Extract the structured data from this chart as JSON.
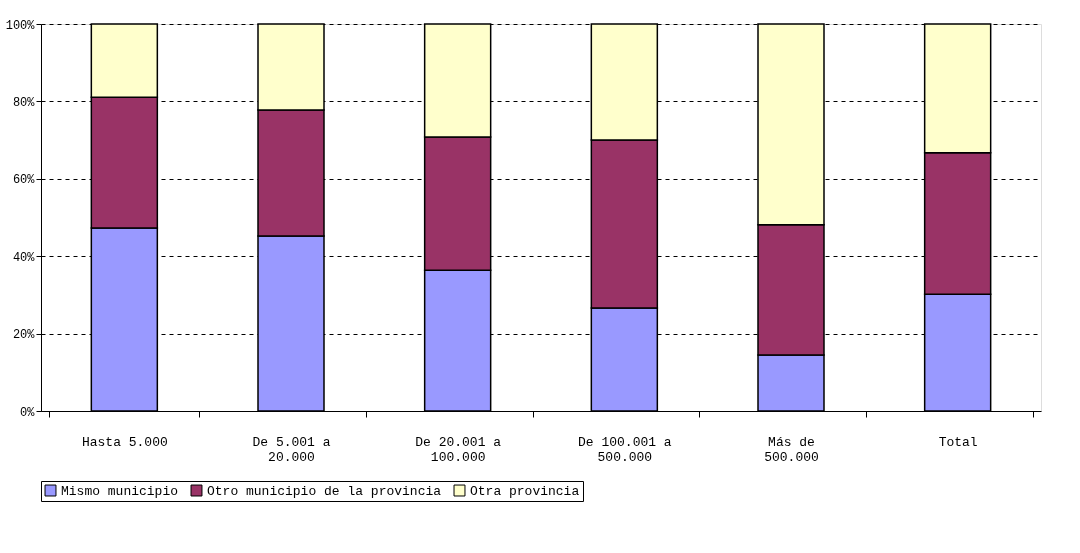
{
  "chart_data": {
    "type": "bar",
    "stacked": true,
    "categories": [
      "Hasta 5.000",
      "De 5.001 a 20.000",
      "De 20.001 a 100.000",
      "De 100.001 a 500.000",
      "Más de 500.000",
      "Total"
    ],
    "series": [
      {
        "name": "Mismo municipio",
        "color": "#9999ff",
        "values": [
          47.3,
          45.2,
          36.4,
          26.6,
          14.5,
          30.2
        ]
      },
      {
        "name": "Otro municipio de la provincia",
        "color": "#993366",
        "values": [
          33.8,
          32.6,
          34.4,
          43.4,
          33.6,
          36.5
        ]
      },
      {
        "name": "Otra provincia",
        "color": "#ffffcc",
        "values": [
          18.9,
          22.2,
          29.2,
          30.0,
          51.9,
          33.3
        ]
      }
    ],
    "ylim": [
      0,
      100
    ],
    "yticks": [
      {
        "value": 0,
        "label": "0%"
      },
      {
        "value": 20,
        "label": "20%"
      },
      {
        "value": 40,
        "label": "40%"
      },
      {
        "value": 60,
        "label": "60%"
      },
      {
        "value": 80,
        "label": "80%"
      },
      {
        "value": 100,
        "label": "100%"
      }
    ],
    "grid": "y",
    "legend": "bottom"
  }
}
